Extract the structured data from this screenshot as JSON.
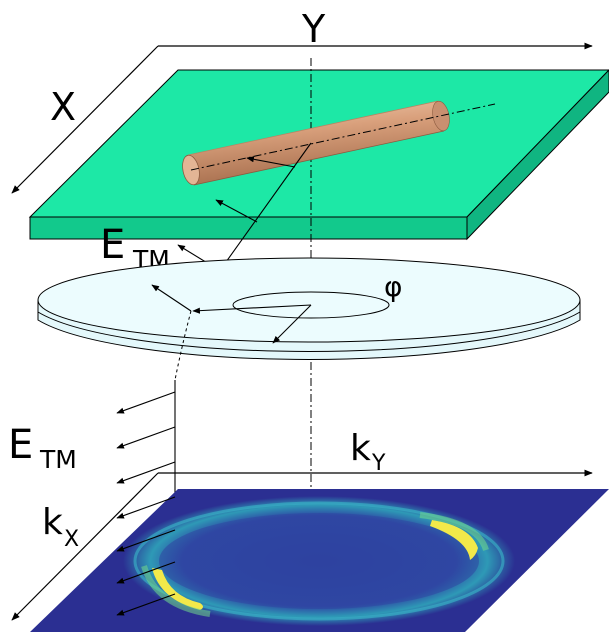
{
  "labels": {
    "y_axis": "Y",
    "x_axis": "X",
    "e_tm_upper": {
      "main": "E",
      "sub": "TM"
    },
    "phi": "φ",
    "e_tm_lower": {
      "main": "E",
      "sub": "TM"
    },
    "ky_axis": {
      "main": "k",
      "sub": "Y"
    },
    "kx_axis": {
      "main": "k",
      "sub": "X"
    }
  },
  "colors": {
    "substrate": "#1de8a6",
    "substrate_side": "#12c98c",
    "nanorod": "#d9a07c",
    "lens": "#e9fbfd",
    "kspace_background": "#2b2f92",
    "ring_highlight": "#f2e94a",
    "axis": "#000000"
  }
}
